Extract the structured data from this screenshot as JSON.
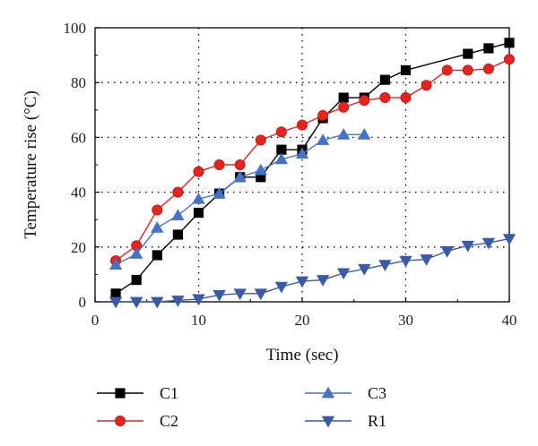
{
  "chart_data": {
    "type": "line",
    "xlabel": "Time (sec)",
    "ylabel": "Temperature rise (°C)",
    "xlim": [
      0,
      40
    ],
    "ylim": [
      0,
      100
    ],
    "xticks": [
      "0",
      "10",
      "20",
      "30",
      "40"
    ],
    "yticks": [
      "0",
      "20",
      "40",
      "60",
      "80",
      "100"
    ],
    "grid": "dotted",
    "legend_position": "bottom",
    "series": [
      {
        "name": "C1",
        "color": "#000000",
        "marker": "square",
        "x": [
          2,
          4,
          6,
          8,
          10,
          12,
          14,
          16,
          18,
          20,
          22,
          24,
          26,
          28,
          30,
          36,
          38,
          40
        ],
        "y": [
          3,
          8,
          17,
          24.5,
          32.5,
          39.5,
          45.5,
          45.5,
          55.5,
          55.5,
          67,
          74.5,
          74.5,
          81,
          84.5,
          90.5,
          92.5,
          94.5
        ]
      },
      {
        "name": "C2",
        "color": "#e8231f",
        "marker": "circle",
        "x": [
          2,
          4,
          6,
          8,
          10,
          12,
          14,
          16,
          18,
          20,
          22,
          24,
          26,
          28,
          30,
          32,
          34,
          36,
          38,
          40
        ],
        "y": [
          15,
          20.5,
          33.5,
          40,
          47.5,
          50,
          50,
          59,
          62,
          64.5,
          68,
          71,
          73.5,
          74.5,
          74.5,
          79,
          84.5,
          84.5,
          85,
          88.5
        ]
      },
      {
        "name": "C3",
        "color": "#4472c4",
        "marker": "triangle-up",
        "x": [
          2,
          4,
          6,
          8,
          10,
          12,
          14,
          16,
          18,
          20,
          22,
          24,
          26
        ],
        "y": [
          13.5,
          17.5,
          27,
          31.5,
          37.5,
          39.5,
          45.5,
          48,
          52,
          54,
          59,
          61,
          61
        ]
      },
      {
        "name": "R1",
        "color": "#3a5aa5",
        "marker": "triangle-down",
        "x": [
          2,
          4,
          6,
          8,
          10,
          12,
          14,
          16,
          18,
          20,
          22,
          24,
          26,
          28,
          30,
          32,
          34,
          36,
          38,
          40
        ],
        "y": [
          0,
          0,
          0,
          0.5,
          1,
          2.5,
          3,
          3,
          5.5,
          7.5,
          8,
          10.5,
          12,
          13.5,
          15,
          15.5,
          18.5,
          20.5,
          21.5,
          23
        ]
      }
    ]
  }
}
